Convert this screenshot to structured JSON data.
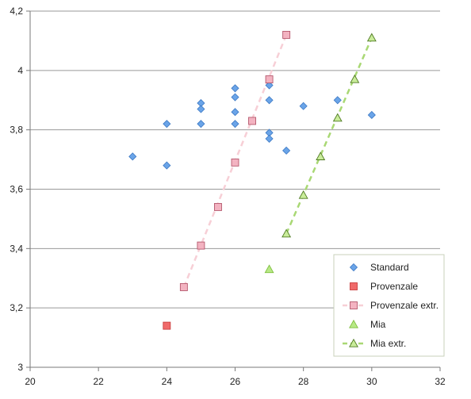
{
  "chart_data": {
    "type": "scatter",
    "title": "",
    "xlabel": "",
    "ylabel": "",
    "xlim": [
      20,
      32
    ],
    "ylim": [
      3,
      4.2
    ],
    "x_ticks": [
      {
        "value": 20,
        "label": "20"
      },
      {
        "value": 22,
        "label": "22"
      },
      {
        "value": 24,
        "label": "24"
      },
      {
        "value": 26,
        "label": "26"
      },
      {
        "value": 28,
        "label": "28"
      },
      {
        "value": 30,
        "label": "30"
      },
      {
        "value": 32,
        "label": "32"
      }
    ],
    "y_ticks": [
      {
        "value": 3,
        "label": "3"
      },
      {
        "value": 3.2,
        "label": "3,2"
      },
      {
        "value": 3.4,
        "label": "3,4"
      },
      {
        "value": 3.6,
        "label": "3,6"
      },
      {
        "value": 3.8,
        "label": "3,8"
      },
      {
        "value": 4,
        "label": "4"
      },
      {
        "value": 4.2,
        "label": "4,2"
      }
    ],
    "grid": "horizontal",
    "legend_position": "bottom-right",
    "series": [
      {
        "name": "Standard",
        "marker": "diamond",
        "color": "#6aa4e8",
        "stroke": "#3d79c4",
        "line": false,
        "points": [
          [
            23,
            3.71
          ],
          [
            24,
            3.82
          ],
          [
            24,
            3.68
          ],
          [
            25,
            3.89
          ],
          [
            25,
            3.87
          ],
          [
            25,
            3.82
          ],
          [
            26,
            3.94
          ],
          [
            26,
            3.91
          ],
          [
            26,
            3.86
          ],
          [
            26,
            3.82
          ],
          [
            27,
            3.95
          ],
          [
            27,
            3.9
          ],
          [
            27,
            3.79
          ],
          [
            27,
            3.77
          ],
          [
            27.5,
            3.73
          ],
          [
            28,
            3.88
          ],
          [
            29,
            3.9
          ],
          [
            30,
            3.85
          ]
        ]
      },
      {
        "name": "Provenzale",
        "marker": "square",
        "color": "#f06a6a",
        "stroke": "#c94040",
        "line": false,
        "points": [
          [
            24,
            3.14
          ]
        ]
      },
      {
        "name": "Provenzale extr.",
        "marker": "square",
        "color": "#f3b3c1",
        "stroke": "#b5586d",
        "line": true,
        "line_color": "#f7cfd6",
        "points": [
          [
            24.5,
            3.27
          ],
          [
            25,
            3.41
          ],
          [
            25.5,
            3.54
          ],
          [
            26,
            3.69
          ],
          [
            26.5,
            3.83
          ],
          [
            27,
            3.97
          ],
          [
            27.5,
            4.12
          ]
        ]
      },
      {
        "name": "Mia",
        "marker": "triangle",
        "color": "#b8e986",
        "stroke": "#7fbf3f",
        "line": false,
        "points": [
          [
            27,
            3.33
          ]
        ]
      },
      {
        "name": "Mia extr.",
        "marker": "triangle",
        "color": "#c9ec9a",
        "stroke": "#4f7a22",
        "line": true,
        "line_color": "#a9d874",
        "points": [
          [
            27.5,
            3.45
          ],
          [
            28,
            3.58
          ],
          [
            28.5,
            3.71
          ],
          [
            29,
            3.84
          ],
          [
            29.5,
            3.97
          ],
          [
            30,
            4.11
          ]
        ]
      }
    ]
  }
}
